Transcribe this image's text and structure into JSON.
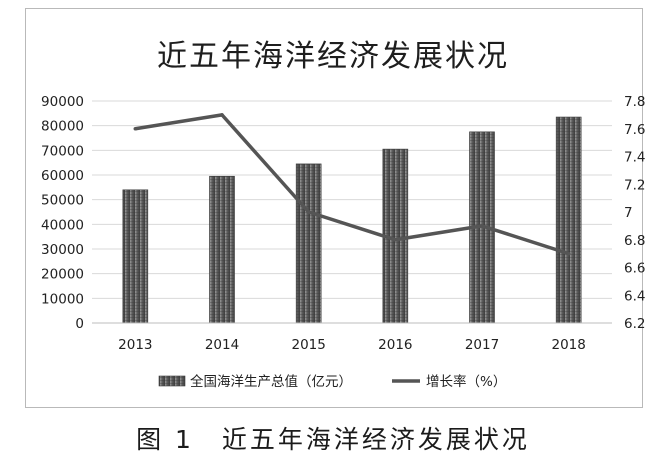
{
  "caption": "图 1　近五年海洋经济发展状况",
  "chart_data": {
    "type": "bar",
    "title": "近五年海洋经济发展状况",
    "categories": [
      "2013",
      "2014",
      "2015",
      "2016",
      "2017",
      "2018"
    ],
    "series": [
      {
        "name": "全国海洋生产总值（亿元）",
        "type": "bar",
        "axis": "left",
        "values": [
          54000,
          59500,
          64500,
          70500,
          77500,
          83500
        ]
      },
      {
        "name": "增长率（%）",
        "type": "line",
        "axis": "right",
        "values": [
          7.6,
          7.7,
          7.0,
          6.8,
          6.9,
          6.7
        ]
      }
    ],
    "y_left": {
      "min": 0,
      "max": 90000,
      "ticks": [
        "0",
        "10000",
        "20000",
        "30000",
        "40000",
        "50000",
        "60000",
        "70000",
        "80000",
        "90000"
      ]
    },
    "y_right": {
      "min": 6.2,
      "max": 7.8,
      "ticks": [
        "6.2",
        "6.4",
        "6.6",
        "6.8",
        "7",
        "7.2",
        "7.4",
        "7.6",
        "7.8"
      ]
    },
    "grid": true,
    "legend": "bottom",
    "colors": {
      "bar": "#5f5f5f",
      "line": "#555555",
      "grid": "#d9d9d9"
    }
  }
}
